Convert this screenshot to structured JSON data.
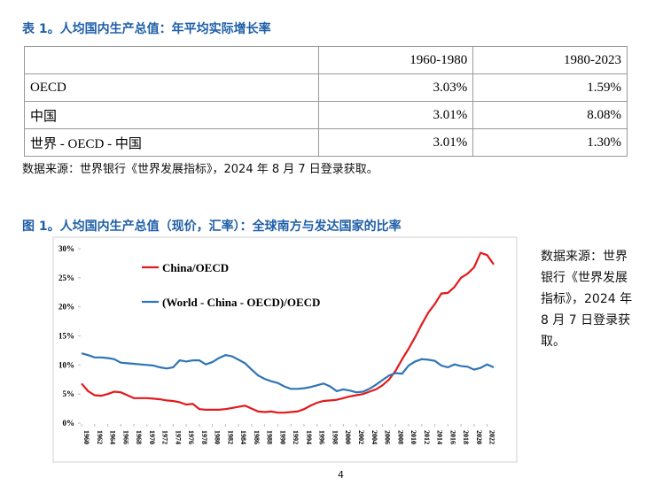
{
  "table_title": "表 1。人均国内生产总值：年平均实际增长率",
  "table": {
    "header": [
      "1960-1980",
      "1980-2023"
    ],
    "rows": [
      [
        "OECD",
        "3.03%",
        "1.59%"
      ],
      [
        "中国",
        "3.01%",
        "8.08%"
      ],
      [
        "世界 - OECD - 中国",
        "3.01%",
        "1.30%"
      ]
    ]
  },
  "table_source": "数据来源：世界银行《世界发展指标》，2024 年 8 月 7 日登录获取。",
  "figure_title": "图 1。人均国内生产总值（现价，汇率）：全球南方与发达国家的比率",
  "figure_source": [
    "数据来源：世界",
    "银行《世界发展",
    "指标》，2024 年",
    "8 月 7 日登录获",
    "取。"
  ],
  "page_number": "4",
  "chart_data": {
    "type": "line",
    "x": [
      1960,
      1961,
      1962,
      1963,
      1964,
      1965,
      1966,
      1967,
      1968,
      1969,
      1970,
      1971,
      1972,
      1973,
      1974,
      1975,
      1976,
      1977,
      1978,
      1979,
      1980,
      1981,
      1982,
      1983,
      1984,
      1985,
      1986,
      1987,
      1988,
      1989,
      1990,
      1991,
      1992,
      1993,
      1994,
      1995,
      1996,
      1997,
      1998,
      1999,
      2000,
      2001,
      2002,
      2003,
      2004,
      2005,
      2006,
      2007,
      2008,
      2009,
      2010,
      2011,
      2012,
      2013,
      2014,
      2015,
      2016,
      2017,
      2018,
      2019,
      2020,
      2021,
      2022,
      2023
    ],
    "series": [
      {
        "name": "China/OECD",
        "color": "#e3191c",
        "values": [
          6.8,
          5.5,
          4.8,
          4.7,
          5.0,
          5.4,
          5.3,
          4.8,
          4.3,
          4.3,
          4.3,
          4.2,
          4.1,
          3.9,
          3.8,
          3.6,
          3.2,
          3.3,
          2.4,
          2.3,
          2.3,
          2.3,
          2.4,
          2.6,
          2.8,
          3.0,
          2.5,
          2.0,
          1.9,
          2.0,
          1.8,
          1.8,
          1.9,
          2.0,
          2.4,
          3.0,
          3.5,
          3.8,
          3.9,
          4.0,
          4.3,
          4.6,
          4.8,
          5.0,
          5.4,
          5.8,
          6.5,
          7.5,
          9.0,
          11.0,
          12.8,
          14.8,
          17.0,
          19.0,
          20.5,
          22.3,
          22.4,
          23.4,
          25.0,
          25.7,
          26.8,
          29.3,
          28.9,
          27.3
        ]
      },
      {
        "name": "(World - China - OECD)/OECD",
        "color": "#2e75b6",
        "values": [
          12.0,
          11.7,
          11.3,
          11.3,
          11.2,
          11.0,
          10.4,
          10.3,
          10.2,
          10.1,
          10.0,
          9.9,
          9.6,
          9.4,
          9.6,
          10.8,
          10.6,
          10.8,
          10.8,
          10.1,
          10.5,
          11.2,
          11.7,
          11.5,
          10.9,
          10.3,
          9.2,
          8.2,
          7.6,
          7.2,
          6.9,
          6.3,
          5.9,
          5.9,
          6.0,
          6.2,
          6.5,
          6.8,
          6.3,
          5.5,
          5.8,
          5.6,
          5.3,
          5.4,
          5.9,
          6.6,
          7.4,
          8.2,
          8.6,
          8.5,
          9.9,
          10.6,
          11.0,
          10.9,
          10.7,
          9.9,
          9.6,
          10.1,
          9.8,
          9.7,
          9.2,
          9.5,
          10.1,
          9.6
        ]
      }
    ],
    "xlim": [
      1960,
      2023
    ],
    "xticks": [
      1960,
      1962,
      1964,
      1966,
      1968,
      1970,
      1972,
      1974,
      1976,
      1978,
      1980,
      1982,
      1984,
      1986,
      1988,
      1990,
      1992,
      1994,
      1996,
      1998,
      2000,
      2002,
      2004,
      2006,
      2008,
      2010,
      2012,
      2014,
      2016,
      2018,
      2020,
      2022
    ],
    "ylim": [
      0,
      30
    ],
    "yticks": [
      {
        "value": 0,
        "label": "0%"
      },
      {
        "value": 5,
        "label": "5%"
      },
      {
        "value": 10,
        "label": "10%"
      },
      {
        "value": 15,
        "label": "15%"
      },
      {
        "value": 20,
        "label": "20%"
      },
      {
        "value": 25,
        "label": "25%"
      },
      {
        "value": 30,
        "label": "30%"
      }
    ],
    "grid": false
  }
}
